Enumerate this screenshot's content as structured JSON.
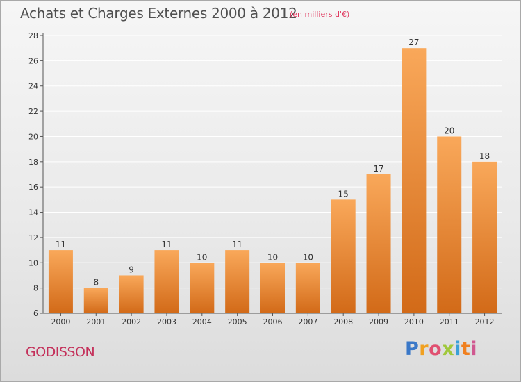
{
  "header": {
    "title": "Achats et Charges Externes 2000 à 2012",
    "subtitle": "(en milliers d'€)"
  },
  "footer": {
    "place": "GODISSON",
    "logo_text": "Proxiti",
    "logo_letters": [
      {
        "ch": "P",
        "color": "#3a78c8"
      },
      {
        "ch": "r",
        "color": "#f0a020"
      },
      {
        "ch": "o",
        "color": "#e05070"
      },
      {
        "ch": "x",
        "color": "#a0c83c"
      },
      {
        "ch": "i",
        "color": "#3aa0d8"
      },
      {
        "ch": "t",
        "color": "#f08020"
      },
      {
        "ch": "i",
        "color": "#d05890"
      }
    ]
  },
  "colors": {
    "bar_light": "#f9a85a",
    "bar_dark": "#d26a18",
    "axis": "#555555",
    "grid": "#ffffff",
    "text": "#333333"
  },
  "chart_data": {
    "type": "bar",
    "categories": [
      "2000",
      "2001",
      "2002",
      "2003",
      "2004",
      "2005",
      "2006",
      "2007",
      "2008",
      "2009",
      "2010",
      "2011",
      "2012"
    ],
    "values": [
      11,
      8,
      9,
      11,
      10,
      11,
      10,
      10,
      15,
      17,
      27,
      20,
      18
    ],
    "value_labels": [
      "11",
      "8",
      "9",
      "11",
      "10",
      "11",
      "10",
      "10",
      "15",
      "17",
      "27",
      "20",
      "18"
    ],
    "title": "Achats et Charges Externes 2000 à 2012",
    "xlabel": "",
    "ylabel": "",
    "ylim": [
      6,
      28
    ],
    "yticks": [
      6,
      8,
      10,
      12,
      14,
      16,
      18,
      20,
      22,
      24,
      26,
      28
    ],
    "ytick_labels": [
      "6",
      "8",
      "10",
      "12",
      "14",
      "16",
      "18",
      "20",
      "22",
      "24",
      "26",
      "28"
    ],
    "grid": true
  }
}
